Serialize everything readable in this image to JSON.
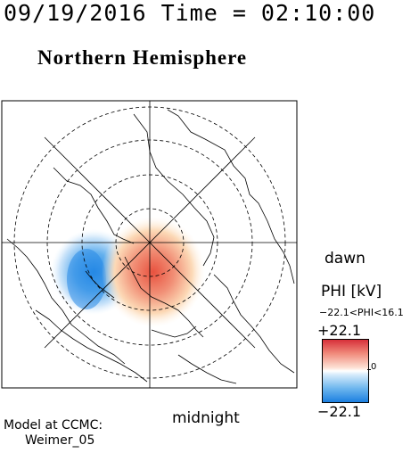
{
  "header": {
    "datetime": "09/19/2016 Time = 02:10:00",
    "hemisphere": "Northern Hemisphere"
  },
  "map": {
    "orientation_labels": {
      "dawn": "dawn",
      "midnight": "midnight"
    },
    "potential_pattern": "positive cell centered near midnight-dusk side, negative cell on dusk side"
  },
  "colorbar": {
    "title": "PHI [kV]",
    "range_text": "−22.1<PHI<16.1",
    "max_label": "+22.1",
    "min_label": "−22.1",
    "zero_label": "0",
    "colors": {
      "positive": "#d7303a",
      "negative": "#1c7fe0",
      "zero": "#ffffff"
    }
  },
  "footer": {
    "model_line1": "Model at CCMC:",
    "model_line2": "Weimer_05"
  }
}
